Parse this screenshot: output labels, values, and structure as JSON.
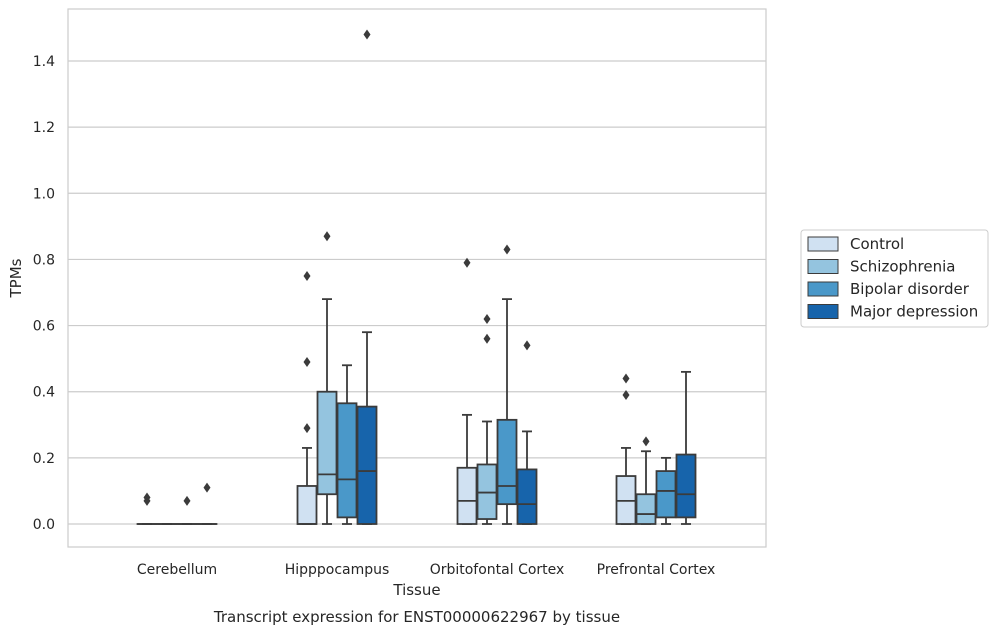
{
  "chart_data": {
    "type": "box",
    "caption": "Transcript expression for ENST00000622967 by tissue",
    "xlabel": "Tissue",
    "ylabel": "TPMs",
    "ylim": [
      -0.07,
      1.56
    ],
    "yticks": [
      0.0,
      0.2,
      0.4,
      0.6,
      0.8,
      1.0,
      1.2,
      1.4
    ],
    "ytick_labels": [
      "0.0",
      "0.2",
      "0.4",
      "0.6",
      "0.8",
      "1.0",
      "1.2",
      "1.4"
    ],
    "grid": "horizontal",
    "legend_position": "right",
    "categories": [
      "Cerebellum",
      "Hipppocampus",
      "Orbitofontal Cortex",
      "Prefrontal Cortex"
    ],
    "series": [
      {
        "name": "Control",
        "color": "#d0e1f2",
        "boxes": [
          {
            "whislo": 0.0,
            "q1": 0.0,
            "med": 0.0,
            "q3": 0.0,
            "whishi": 0.0,
            "fliers": [
              0.07,
              0.08
            ]
          },
          {
            "whislo": 0.0,
            "q1": 0.0,
            "med": 0.0,
            "q3": 0.115,
            "whishi": 0.23,
            "fliers": [
              0.29,
              0.49,
              0.75
            ]
          },
          {
            "whislo": 0.0,
            "q1": 0.0,
            "med": 0.07,
            "q3": 0.17,
            "whishi": 0.33,
            "fliers": [
              0.79
            ]
          },
          {
            "whislo": 0.0,
            "q1": 0.0,
            "med": 0.07,
            "q3": 0.145,
            "whishi": 0.23,
            "fliers": [
              0.39,
              0.44
            ]
          }
        ]
      },
      {
        "name": "Schizophrenia",
        "color": "#94c4df",
        "boxes": [
          {
            "whislo": 0.0,
            "q1": 0.0,
            "med": 0.0,
            "q3": 0.0,
            "whishi": 0.0,
            "fliers": []
          },
          {
            "whislo": 0.0,
            "q1": 0.09,
            "med": 0.15,
            "q3": 0.4,
            "whishi": 0.68,
            "fliers": [
              0.87
            ]
          },
          {
            "whislo": 0.0,
            "q1": 0.015,
            "med": 0.095,
            "q3": 0.18,
            "whishi": 0.31,
            "fliers": [
              0.56,
              0.62
            ]
          },
          {
            "whislo": 0.0,
            "q1": 0.0,
            "med": 0.03,
            "q3": 0.09,
            "whishi": 0.22,
            "fliers": [
              0.25
            ]
          }
        ]
      },
      {
        "name": "Bipolar disorder",
        "color": "#4a98c9",
        "boxes": [
          {
            "whislo": 0.0,
            "q1": 0.0,
            "med": 0.0,
            "q3": 0.0,
            "whishi": 0.0,
            "fliers": [
              0.07
            ]
          },
          {
            "whislo": 0.0,
            "q1": 0.02,
            "med": 0.135,
            "q3": 0.365,
            "whishi": 0.48,
            "fliers": []
          },
          {
            "whislo": 0.0,
            "q1": 0.06,
            "med": 0.115,
            "q3": 0.315,
            "whishi": 0.68,
            "fliers": [
              0.83
            ]
          },
          {
            "whislo": 0.0,
            "q1": 0.02,
            "med": 0.1,
            "q3": 0.16,
            "whishi": 0.2,
            "fliers": []
          }
        ]
      },
      {
        "name": "Major depression",
        "color": "#1764ab",
        "boxes": [
          {
            "whislo": 0.0,
            "q1": 0.0,
            "med": 0.0,
            "q3": 0.0,
            "whishi": 0.0,
            "fliers": [
              0.11
            ]
          },
          {
            "whislo": 0.0,
            "q1": 0.0,
            "med": 0.16,
            "q3": 0.355,
            "whishi": 0.58,
            "fliers": [
              1.48
            ]
          },
          {
            "whislo": 0.0,
            "q1": 0.0,
            "med": 0.06,
            "q3": 0.165,
            "whishi": 0.28,
            "fliers": [
              0.54
            ]
          },
          {
            "whislo": 0.0,
            "q1": 0.02,
            "med": 0.09,
            "q3": 0.21,
            "whishi": 0.46,
            "fliers": []
          }
        ]
      }
    ]
  },
  "colors": {
    "grid": "#cccccc",
    "frame": "#cccccc",
    "line": "#3b3b3b",
    "text": "#262626"
  }
}
